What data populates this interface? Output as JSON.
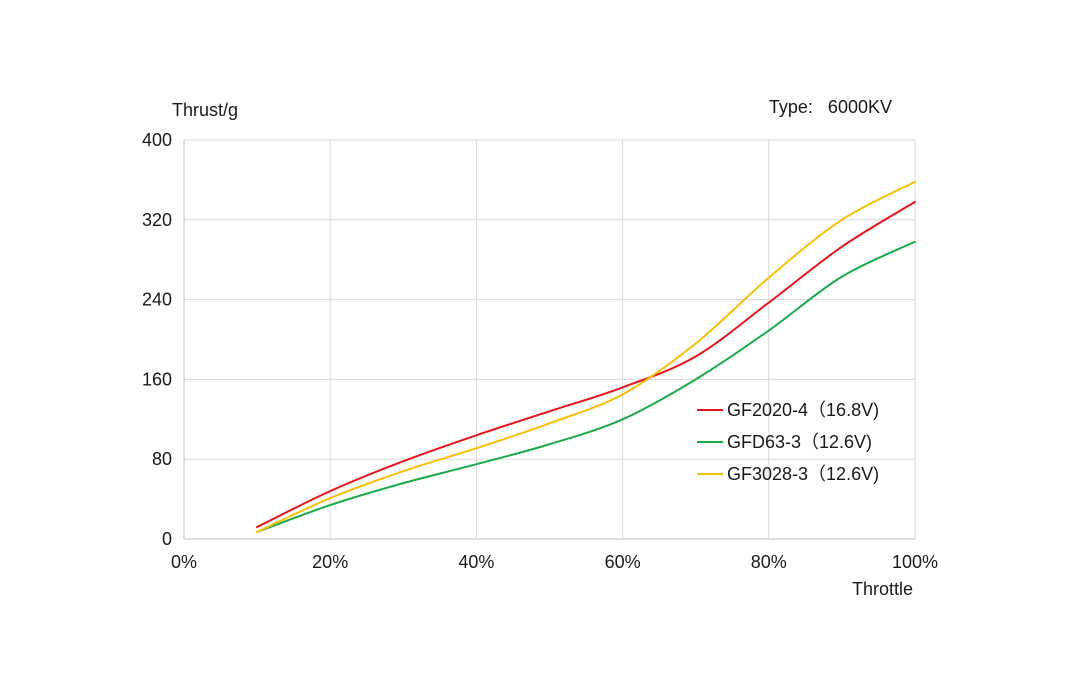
{
  "chart_data": {
    "type": "line",
    "ylabel": "Thrust/g",
    "xlabel": "Throttle",
    "annotation": "Type:   6000KV",
    "x": [
      10,
      20,
      30,
      40,
      50,
      60,
      70,
      80,
      90,
      100
    ],
    "xlim": [
      0,
      100
    ],
    "ylim": [
      0,
      400
    ],
    "x_ticks": [
      "0%",
      "20%",
      "40%",
      "60%",
      "80%",
      "100%"
    ],
    "y_ticks": [
      "0",
      "80",
      "160",
      "240",
      "320",
      "400"
    ],
    "grid": true,
    "legend_position": "right",
    "series": [
      {
        "name": "GF2020-4（16.8V)",
        "color": "#e8141c",
        "values": [
          12,
          48,
          78,
          104,
          128,
          152,
          183,
          237,
          293,
          338
        ]
      },
      {
        "name": "GFD63-3（12.6V)",
        "color": "#1aaa4a",
        "values": [
          7,
          34,
          56,
          75,
          95,
          120,
          160,
          209,
          263,
          298
        ]
      },
      {
        "name": "GF3028-3（12.6V)",
        "color": "#f5bf0a",
        "values": [
          7,
          41,
          68,
          91,
          116,
          145,
          196,
          262,
          320,
          358
        ]
      }
    ]
  }
}
